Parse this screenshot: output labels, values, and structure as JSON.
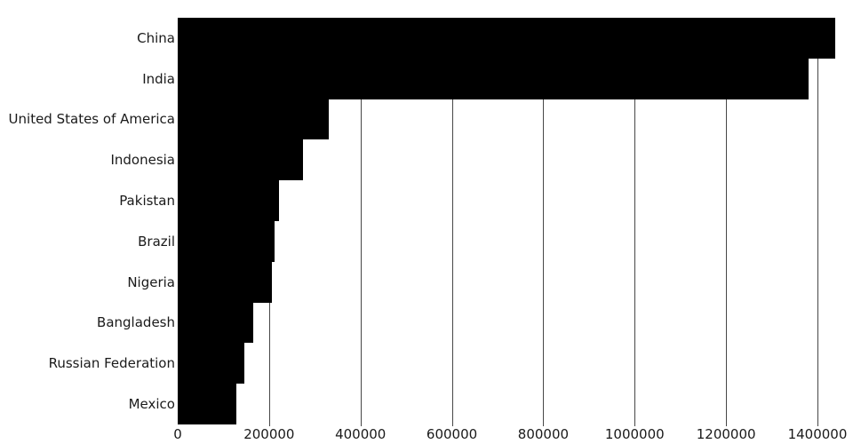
{
  "chart_data": {
    "type": "bar",
    "orientation": "horizontal",
    "title": "",
    "xlabel": "",
    "ylabel": "",
    "categories": [
      "China",
      "India",
      "United States of America",
      "Indonesia",
      "Pakistan",
      "Brazil",
      "Nigeria",
      "Bangladesh",
      "Russian Federation",
      "Mexico"
    ],
    "values": [
      1439324,
      1380004,
      331003,
      273524,
      220892,
      212559,
      206140,
      164689,
      145934,
      128933
    ],
    "x_ticks": [
      0,
      200000,
      400000,
      600000,
      800000,
      1000000,
      1200000,
      1400000
    ],
    "x_tick_labels": [
      "0",
      "200000",
      "400000",
      "600000",
      "800000",
      "1000000",
      "1200000",
      "1400000"
    ],
    "xlim": [
      0,
      1440000
    ],
    "grid": true,
    "legend": false,
    "bar_color": "#000000",
    "gridline_color": "#474747",
    "text_color": "#1a1a1a",
    "background_color": "#ffffff"
  }
}
